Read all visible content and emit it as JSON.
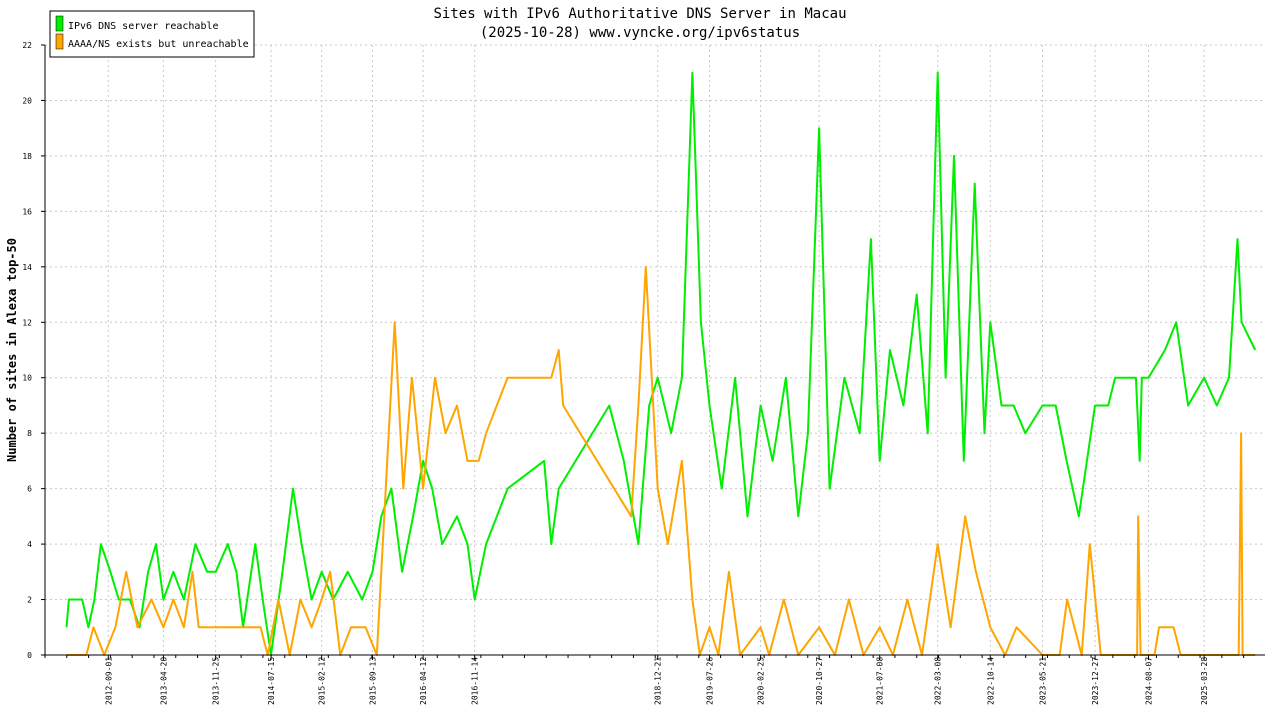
{
  "chart_data": {
    "type": "line",
    "title": "Sites with IPv6 Authoritative DNS Server in Macau",
    "subtitle": "(2025-10-28) www.vyncke.org/ipv6status",
    "xlabel": "",
    "ylabel": "Number of sites in Alexa top-50",
    "ylim": [
      0,
      22
    ],
    "y_ticks": [
      0,
      2,
      4,
      6,
      8,
      10,
      12,
      14,
      16,
      18,
      20,
      22
    ],
    "x_tick_labels": [
      "2012-09-01",
      "2013-04-20",
      "2013-11-25",
      "2014-07-15",
      "2015-02-12",
      "2015-09-13",
      "2016-04-12",
      "2016-11-14",
      "2018-12-21",
      "2019-07-26",
      "2020-02-25",
      "2020-10-27",
      "2021-07-08",
      "2022-03-08",
      "2022-10-14",
      "2023-05-21",
      "2023-12-27",
      "2024-08-07",
      "2025-03-28"
    ],
    "grid": true,
    "legend_position": "top-left",
    "series": [
      {
        "name": "IPv6 DNS server reachable",
        "color": "#00ee00",
        "points": [
          [
            "2012-03-10",
            1
          ],
          [
            "2012-03-20",
            2
          ],
          [
            "2012-05-15",
            2
          ],
          [
            "2012-06-10",
            1
          ],
          [
            "2012-07-05",
            2
          ],
          [
            "2012-08-01",
            4
          ],
          [
            "2012-09-10",
            3
          ],
          [
            "2012-10-15",
            2
          ],
          [
            "2012-12-01",
            2
          ],
          [
            "2013-01-10",
            1
          ],
          [
            "2013-02-15",
            3
          ],
          [
            "2013-03-20",
            4
          ],
          [
            "2013-04-20",
            2
          ],
          [
            "2013-06-01",
            3
          ],
          [
            "2013-07-15",
            2
          ],
          [
            "2013-09-01",
            4
          ],
          [
            "2013-10-20",
            3
          ],
          [
            "2013-11-25",
            3
          ],
          [
            "2014-01-15",
            4
          ],
          [
            "2014-02-20",
            3
          ],
          [
            "2014-03-20",
            1
          ],
          [
            "2014-05-10",
            4
          ],
          [
            "2014-06-10",
            2
          ],
          [
            "2014-07-15",
            0
          ],
          [
            "2014-09-01",
            3
          ],
          [
            "2014-10-15",
            6
          ],
          [
            "2014-11-20",
            4
          ],
          [
            "2015-01-01",
            2
          ],
          [
            "2015-02-12",
            3
          ],
          [
            "2015-04-01",
            2
          ],
          [
            "2015-06-01",
            3
          ],
          [
            "2015-08-01",
            2
          ],
          [
            "2015-09-13",
            3
          ],
          [
            "2015-10-20",
            5
          ],
          [
            "2015-12-01",
            6
          ],
          [
            "2016-01-15",
            3
          ],
          [
            "2016-03-01",
            5
          ],
          [
            "2016-04-12",
            7
          ],
          [
            "2016-05-20",
            6
          ],
          [
            "2016-07-01",
            4
          ],
          [
            "2016-09-01",
            5
          ],
          [
            "2016-10-15",
            4
          ],
          [
            "2016-11-14",
            2
          ],
          [
            "2017-01-01",
            4
          ],
          [
            "2017-04-01",
            6
          ],
          [
            "2017-09-01",
            7
          ],
          [
            "2017-10-01",
            4
          ],
          [
            "2017-11-01",
            6
          ],
          [
            "2018-06-01",
            9
          ],
          [
            "2018-08-01",
            7
          ],
          [
            "2018-10-01",
            4
          ],
          [
            "2018-11-15",
            9
          ],
          [
            "2018-12-21",
            10
          ],
          [
            "2019-02-15",
            8
          ],
          [
            "2019-04-01",
            10
          ],
          [
            "2019-05-15",
            21
          ],
          [
            "2019-06-20",
            12
          ],
          [
            "2019-07-26",
            9
          ],
          [
            "2019-09-15",
            6
          ],
          [
            "2019-11-10",
            10
          ],
          [
            "2020-01-01",
            5
          ],
          [
            "2020-02-25",
            9
          ],
          [
            "2020-04-15",
            7
          ],
          [
            "2020-06-10",
            10
          ],
          [
            "2020-08-01",
            5
          ],
          [
            "2020-09-10",
            8
          ],
          [
            "2020-10-27",
            19
          ],
          [
            "2020-12-10",
            6
          ],
          [
            "2021-02-10",
            10
          ],
          [
            "2021-04-15",
            8
          ],
          [
            "2021-06-01",
            15
          ],
          [
            "2021-07-08",
            7
          ],
          [
            "2021-08-20",
            11
          ],
          [
            "2021-10-15",
            9
          ],
          [
            "2021-12-10",
            13
          ],
          [
            "2022-01-25",
            8
          ],
          [
            "2022-03-08",
            21
          ],
          [
            "2022-04-10",
            10
          ],
          [
            "2022-05-15",
            18
          ],
          [
            "2022-06-25",
            7
          ],
          [
            "2022-08-10",
            17
          ],
          [
            "2022-09-20",
            8
          ],
          [
            "2022-10-14",
            12
          ],
          [
            "2022-11-30",
            9
          ],
          [
            "2023-01-20",
            9
          ],
          [
            "2023-03-10",
            8
          ],
          [
            "2023-05-21",
            9
          ],
          [
            "2023-07-15",
            9
          ],
          [
            "2023-08-30",
            7
          ],
          [
            "2023-10-20",
            5
          ],
          [
            "2023-12-27",
            9
          ],
          [
            "2024-02-20",
            9
          ],
          [
            "2024-03-20",
            10
          ],
          [
            "2024-06-15",
            10
          ],
          [
            "2024-07-01",
            7
          ],
          [
            "2024-07-10",
            10
          ],
          [
            "2024-08-07",
            10
          ],
          [
            "2024-10-15",
            11
          ],
          [
            "2024-12-01",
            12
          ],
          [
            "2025-01-20",
            9
          ],
          [
            "2025-03-28",
            10
          ],
          [
            "2025-05-20",
            9
          ],
          [
            "2025-07-10",
            10
          ],
          [
            "2025-08-15",
            15
          ],
          [
            "2025-09-01",
            12
          ],
          [
            "2025-10-28",
            11
          ]
        ]
      },
      {
        "name": "AAAA/NS exists but unreachable",
        "color": "#ffa500",
        "points": [
          [
            "2012-03-10",
            0
          ],
          [
            "2012-06-01",
            0
          ],
          [
            "2012-07-01",
            1
          ],
          [
            "2012-08-15",
            0
          ],
          [
            "2012-10-01",
            1
          ],
          [
            "2012-11-15",
            3
          ],
          [
            "2013-01-01",
            1
          ],
          [
            "2013-03-01",
            2
          ],
          [
            "2013-04-20",
            1
          ],
          [
            "2013-06-01",
            2
          ],
          [
            "2013-07-15",
            1
          ],
          [
            "2013-08-20",
            3
          ],
          [
            "2013-09-15",
            1
          ],
          [
            "2014-06-01",
            1
          ],
          [
            "2014-07-01",
            0
          ],
          [
            "2014-08-15",
            2
          ],
          [
            "2014-10-01",
            0
          ],
          [
            "2014-11-15",
            2
          ],
          [
            "2015-01-01",
            1
          ],
          [
            "2015-02-12",
            2
          ],
          [
            "2015-03-20",
            3
          ],
          [
            "2015-05-01",
            0
          ],
          [
            "2015-06-15",
            1
          ],
          [
            "2015-08-15",
            1
          ],
          [
            "2015-10-01",
            0
          ],
          [
            "2015-12-15",
            12
          ],
          [
            "2016-01-20",
            6
          ],
          [
            "2016-02-25",
            10
          ],
          [
            "2016-04-12",
            6
          ],
          [
            "2016-06-01",
            10
          ],
          [
            "2016-07-15",
            8
          ],
          [
            "2016-09-01",
            9
          ],
          [
            "2016-10-15",
            7
          ],
          [
            "2016-12-01",
            7
          ],
          [
            "2017-01-01",
            8
          ],
          [
            "2017-04-01",
            10
          ],
          [
            "2017-10-01",
            10
          ],
          [
            "2017-11-01",
            11
          ],
          [
            "2017-11-20",
            9
          ],
          [
            "2018-09-01",
            5
          ],
          [
            "2018-10-01",
            9
          ],
          [
            "2018-11-01",
            14
          ],
          [
            "2018-12-21",
            6
          ],
          [
            "2019-02-01",
            4
          ],
          [
            "2019-04-01",
            7
          ],
          [
            "2019-05-15",
            2
          ],
          [
            "2019-06-15",
            0
          ],
          [
            "2019-07-26",
            1
          ],
          [
            "2019-09-01",
            0
          ],
          [
            "2019-10-15",
            3
          ],
          [
            "2019-12-01",
            0
          ],
          [
            "2020-02-25",
            1
          ],
          [
            "2020-04-01",
            0
          ],
          [
            "2020-06-01",
            2
          ],
          [
            "2020-08-01",
            0
          ],
          [
            "2020-10-27",
            1
          ],
          [
            "2021-01-01",
            0
          ],
          [
            "2021-03-01",
            2
          ],
          [
            "2021-05-01",
            0
          ],
          [
            "2021-07-08",
            1
          ],
          [
            "2021-09-01",
            0
          ],
          [
            "2021-11-01",
            2
          ],
          [
            "2022-01-01",
            0
          ],
          [
            "2022-03-08",
            4
          ],
          [
            "2022-05-01",
            1
          ],
          [
            "2022-07-01",
            5
          ],
          [
            "2022-08-15",
            3
          ],
          [
            "2022-10-14",
            1
          ],
          [
            "2022-12-15",
            0
          ],
          [
            "2023-02-01",
            1
          ],
          [
            "2023-05-21",
            0
          ],
          [
            "2023-08-01",
            0
          ],
          [
            "2023-09-01",
            2
          ],
          [
            "2023-11-01",
            0
          ],
          [
            "2023-12-05",
            4
          ],
          [
            "2024-01-20",
            0
          ],
          [
            "2024-06-20",
            0
          ],
          [
            "2024-06-25",
            5
          ],
          [
            "2024-07-05",
            0
          ],
          [
            "2024-09-01",
            0
          ],
          [
            "2024-09-20",
            1
          ],
          [
            "2024-11-20",
            1
          ],
          [
            "2024-12-20",
            0
          ],
          [
            "2025-08-20",
            0
          ],
          [
            "2025-08-30",
            8
          ],
          [
            "2025-09-05",
            0
          ],
          [
            "2025-10-28",
            0
          ]
        ]
      }
    ]
  }
}
